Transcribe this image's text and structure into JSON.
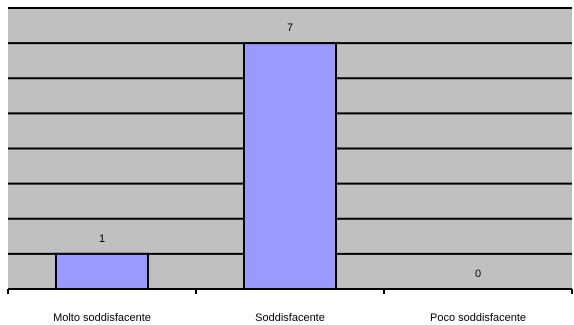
{
  "chart_data": {
    "type": "bar",
    "categories": [
      "Molto soddisfacente",
      "Soddisfacente",
      "Poco soddisfacente"
    ],
    "values": [
      1,
      7,
      0
    ],
    "data_labels": [
      "1",
      "7",
      "0"
    ],
    "title": "",
    "xlabel": "",
    "ylabel": "",
    "ylim": [
      0,
      8
    ],
    "y_gridline_step": 1,
    "grid": true,
    "legend": "none",
    "colors": {
      "plot_background": "#c0c0c0",
      "bar_fill": "#9999ff",
      "bar_stroke": "#000000",
      "gridline": "#000000",
      "axis": "#000000"
    }
  }
}
